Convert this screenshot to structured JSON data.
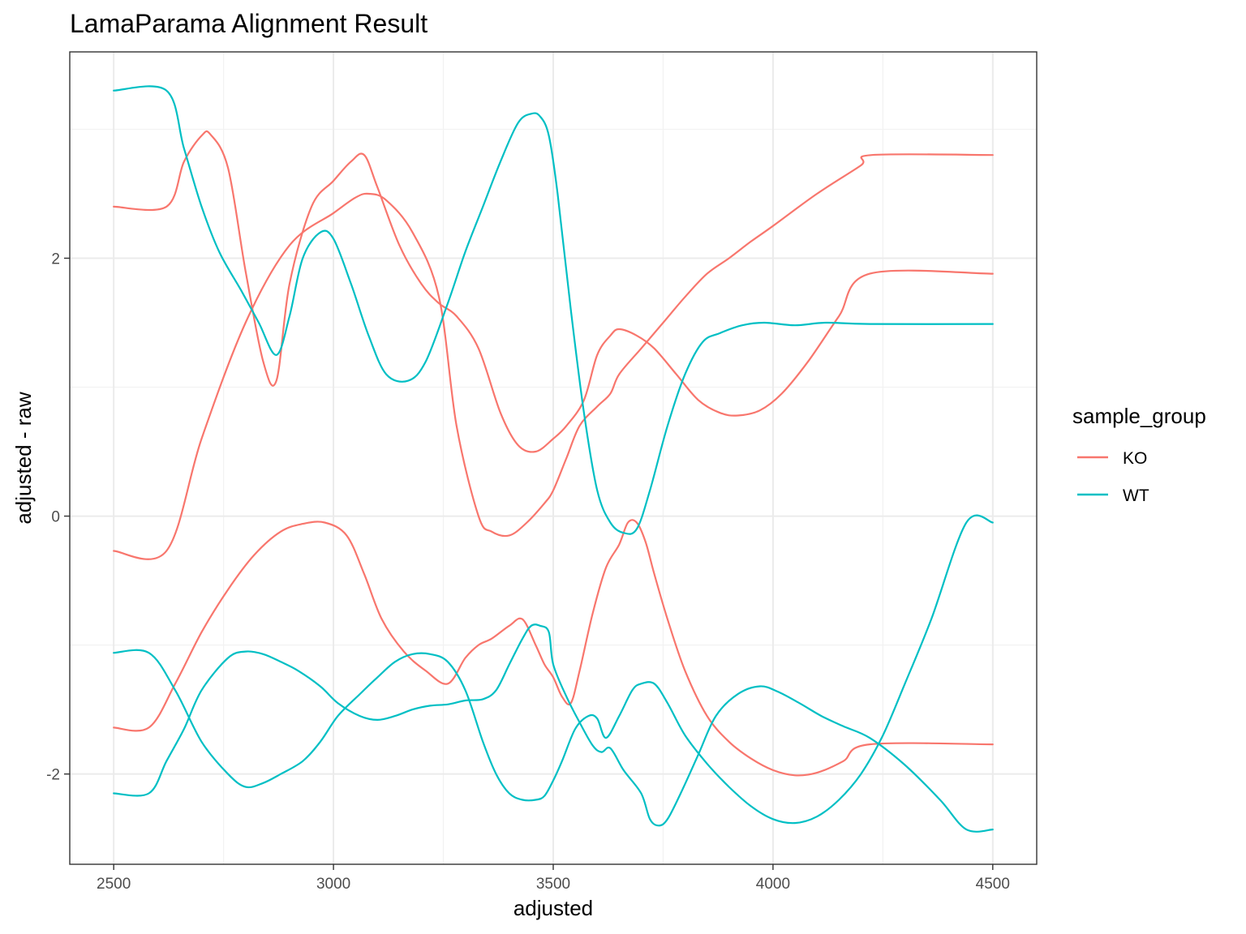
{
  "chart_data": {
    "type": "line",
    "title": "LamaParama Alignment Result",
    "xlabel": "adjusted",
    "ylabel": "adjusted - raw",
    "xlim": [
      2400,
      4600
    ],
    "ylim": [
      -2.7,
      3.6
    ],
    "x_ticks": [
      2500,
      3000,
      3500,
      4000,
      4500
    ],
    "x_tick_labels": [
      "2500",
      "3000",
      "3500",
      "4000",
      "4500"
    ],
    "y_ticks": [
      -2,
      0,
      2
    ],
    "y_tick_labels": [
      "-2",
      "0",
      "2"
    ],
    "grid": true,
    "legend": {
      "title": "sample_group",
      "position": "right"
    },
    "series": [
      {
        "name": "KO",
        "color": "#F8766D",
        "x": [
          2500,
          2620,
          2660,
          2700,
          2720,
          2760,
          2800,
          2840,
          2870,
          2900,
          2950,
          3000,
          3040,
          3070,
          3100,
          3150,
          3200,
          3240,
          3280,
          3330,
          3380,
          3420,
          3460,
          3500,
          3530,
          3570,
          3600,
          3630,
          3650,
          3690,
          3730,
          3780,
          3830,
          3880,
          3920,
          3970,
          4020,
          4080,
          4150,
          4220,
          4500
        ],
        "y": [
          2.4,
          2.4,
          2.75,
          2.95,
          2.96,
          2.7,
          1.9,
          1.2,
          1.05,
          1.8,
          2.4,
          2.6,
          2.75,
          2.8,
          2.55,
          2.1,
          1.8,
          1.65,
          1.55,
          1.3,
          0.8,
          0.55,
          0.5,
          0.6,
          0.7,
          0.9,
          1.25,
          1.4,
          1.45,
          1.4,
          1.3,
          1.1,
          0.9,
          0.8,
          0.78,
          0.82,
          0.95,
          1.2,
          1.55,
          1.88,
          1.88
        ]
      },
      {
        "name": "KO",
        "color": "#F8766D",
        "x": [
          2500,
          2620,
          2700,
          2800,
          2900,
          3000,
          3050,
          3080,
          3120,
          3180,
          3240,
          3280,
          3330,
          3360,
          3400,
          3440,
          3480,
          3500,
          3530,
          3560,
          3600,
          3630,
          3650,
          3700,
          3750,
          3800,
          3850,
          3900,
          3950,
          4000,
          4100,
          4200,
          4225,
          4500
        ],
        "y": [
          -0.27,
          -0.27,
          0.6,
          1.5,
          2.1,
          2.35,
          2.47,
          2.5,
          2.45,
          2.2,
          1.7,
          0.7,
          0.0,
          -0.12,
          -0.15,
          -0.05,
          0.1,
          0.2,
          0.45,
          0.7,
          0.85,
          0.95,
          1.1,
          1.3,
          1.5,
          1.7,
          1.88,
          2.0,
          2.13,
          2.25,
          2.5,
          2.72,
          2.8,
          2.8
        ]
      },
      {
        "name": "KO",
        "color": "#F8766D",
        "x": [
          2500,
          2580,
          2640,
          2700,
          2760,
          2820,
          2880,
          2930,
          2980,
          3030,
          3070,
          3110,
          3160,
          3210,
          3260,
          3300,
          3330,
          3360,
          3400,
          3430,
          3460,
          3480,
          3500,
          3520,
          3540,
          3560,
          3590,
          3620,
          3650,
          3670,
          3690,
          3710,
          3730,
          3760,
          3800,
          3850,
          3900,
          3950,
          4000,
          4050,
          4100,
          4160,
          4220,
          4500
        ],
        "y": [
          -1.64,
          -1.64,
          -1.3,
          -0.9,
          -0.57,
          -0.3,
          -0.12,
          -0.06,
          -0.05,
          -0.15,
          -0.45,
          -0.8,
          -1.05,
          -1.2,
          -1.3,
          -1.1,
          -1.0,
          -0.95,
          -0.85,
          -0.8,
          -1.0,
          -1.15,
          -1.25,
          -1.4,
          -1.45,
          -1.2,
          -0.75,
          -0.4,
          -0.22,
          -0.05,
          -0.05,
          -0.2,
          -0.45,
          -0.8,
          -1.2,
          -1.55,
          -1.75,
          -1.88,
          -1.97,
          -2.01,
          -1.99,
          -1.9,
          -1.77,
          -1.77
        ]
      },
      {
        "name": "WT",
        "color": "#00BFC4",
        "x": [
          2500,
          2620,
          2660,
          2700,
          2740,
          2790,
          2830,
          2870,
          2900,
          2930,
          2970,
          3000,
          3040,
          3080,
          3120,
          3170,
          3210,
          3260,
          3300,
          3340,
          3380,
          3420,
          3450,
          3470,
          3490,
          3510,
          3540,
          3570,
          3600,
          3630,
          3660,
          3690,
          3720,
          3760,
          3800,
          3840,
          3880,
          3930,
          3980,
          4050,
          4120,
          4220,
          4500
        ],
        "y": [
          3.3,
          3.3,
          2.85,
          2.4,
          2.05,
          1.75,
          1.5,
          1.25,
          1.55,
          2.0,
          2.2,
          2.15,
          1.8,
          1.4,
          1.1,
          1.05,
          1.2,
          1.65,
          2.05,
          2.4,
          2.75,
          3.05,
          3.12,
          3.1,
          2.95,
          2.5,
          1.6,
          0.8,
          0.2,
          -0.05,
          -0.13,
          -0.1,
          0.2,
          0.7,
          1.1,
          1.35,
          1.42,
          1.48,
          1.5,
          1.48,
          1.5,
          1.49,
          1.49
        ]
      },
      {
        "name": "WT",
        "color": "#00BFC4",
        "x": [
          2500,
          2580,
          2640,
          2700,
          2760,
          2800,
          2840,
          2880,
          2930,
          2970,
          3010,
          3060,
          3100,
          3140,
          3180,
          3220,
          3260,
          3300,
          3340,
          3370,
          3400,
          3430,
          3460,
          3480,
          3500,
          3520,
          3550,
          3580,
          3600,
          3620,
          3650,
          3680,
          3700,
          3730,
          3760,
          3800,
          3850,
          3900,
          3950,
          4000,
          4050,
          4100,
          4150,
          4200,
          4250,
          4300,
          4360,
          4440,
          4500
        ],
        "y": [
          -1.06,
          -1.06,
          -1.35,
          -1.75,
          -2.0,
          -2.1,
          -2.07,
          -2.0,
          -1.9,
          -1.75,
          -1.55,
          -1.38,
          -1.25,
          -1.13,
          -1.07,
          -1.07,
          -1.13,
          -1.35,
          -1.75,
          -2.0,
          -2.15,
          -2.2,
          -2.2,
          -2.17,
          -2.05,
          -1.9,
          -1.65,
          -1.55,
          -1.57,
          -1.72,
          -1.55,
          -1.35,
          -1.3,
          -1.3,
          -1.45,
          -1.7,
          -1.92,
          -2.1,
          -2.25,
          -2.35,
          -2.38,
          -2.33,
          -2.2,
          -2.0,
          -1.7,
          -1.3,
          -0.8,
          -0.05,
          -0.05
        ]
      },
      {
        "name": "WT",
        "color": "#00BFC4",
        "x": [
          2500,
          2580,
          2620,
          2660,
          2700,
          2760,
          2800,
          2840,
          2880,
          2920,
          2970,
          3010,
          3060,
          3100,
          3140,
          3180,
          3220,
          3260,
          3300,
          3340,
          3370,
          3400,
          3430,
          3450,
          3470,
          3490,
          3500,
          3530,
          3560,
          3590,
          3610,
          3630,
          3660,
          3700,
          3720,
          3740,
          3760,
          3790,
          3830,
          3870,
          3920,
          3970,
          4010,
          4060,
          4110,
          4160,
          4220,
          4300,
          4380,
          4440,
          4500
        ],
        "y": [
          -2.15,
          -2.15,
          -1.9,
          -1.65,
          -1.35,
          -1.1,
          -1.05,
          -1.07,
          -1.13,
          -1.2,
          -1.32,
          -1.45,
          -1.55,
          -1.58,
          -1.55,
          -1.5,
          -1.47,
          -1.46,
          -1.43,
          -1.42,
          -1.35,
          -1.15,
          -0.95,
          -0.85,
          -0.85,
          -0.9,
          -1.15,
          -1.4,
          -1.6,
          -1.78,
          -1.83,
          -1.8,
          -1.97,
          -2.15,
          -2.35,
          -2.4,
          -2.35,
          -2.15,
          -1.85,
          -1.55,
          -1.38,
          -1.32,
          -1.36,
          -1.45,
          -1.55,
          -1.63,
          -1.72,
          -1.93,
          -2.2,
          -2.43,
          -2.43
        ]
      }
    ]
  }
}
